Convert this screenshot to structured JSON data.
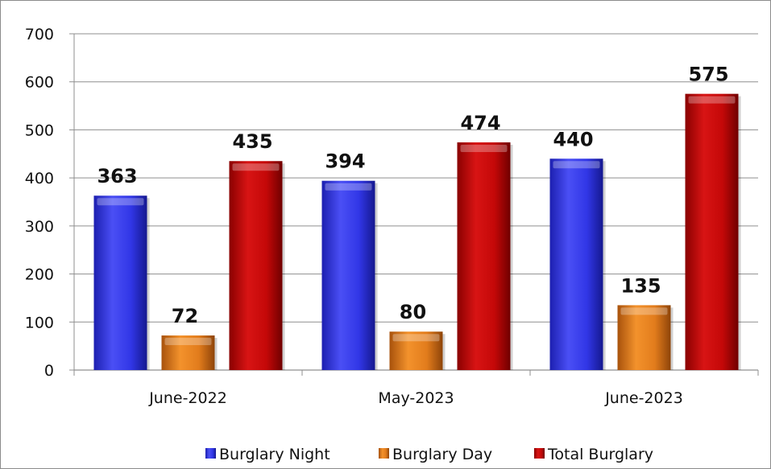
{
  "chart_data": {
    "type": "bar",
    "categories": [
      "June-2022",
      "May-2023",
      "June-2023"
    ],
    "series": [
      {
        "name": "Burglary Night",
        "values": [
          363,
          394,
          440
        ],
        "color": "#2a2ee0"
      },
      {
        "name": "Burglary Day",
        "values": [
          72,
          80,
          135
        ],
        "color": "#e07a1a"
      },
      {
        "name": "Total Burglary",
        "values": [
          435,
          474,
          575
        ],
        "color": "#c00000"
      }
    ],
    "ylim": [
      0,
      700
    ],
    "yticks": [
      0,
      100,
      200,
      300,
      400,
      500,
      600,
      700
    ],
    "grid": true,
    "legend_position": "bottom",
    "title": "",
    "xlabel": "",
    "ylabel": ""
  }
}
